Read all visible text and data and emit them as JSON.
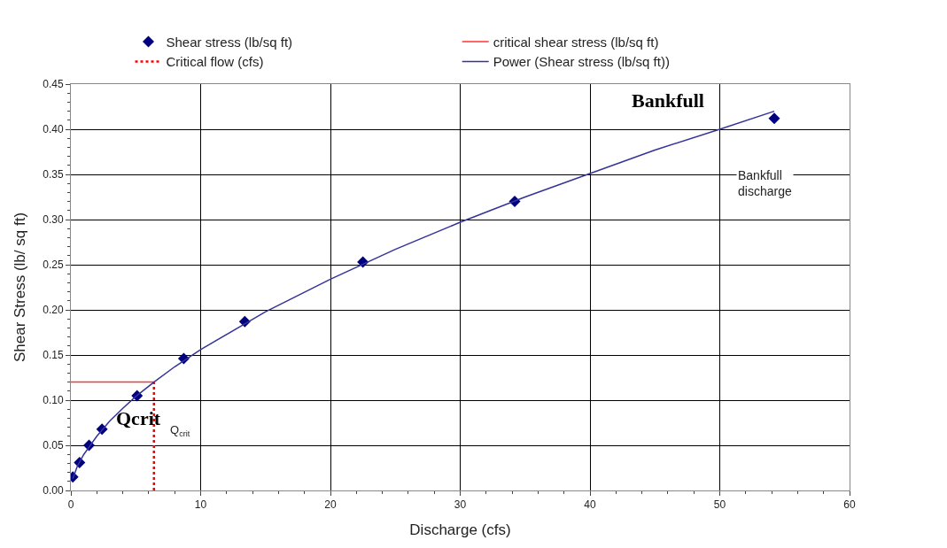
{
  "chart_data": {
    "type": "scatter",
    "xlabel": "Discharge (cfs)",
    "ylabel": "Shear Stress (lb/ sq ft)",
    "xlim": [
      0,
      60
    ],
    "xticks": [
      0,
      10,
      20,
      30,
      40,
      50,
      60
    ],
    "ylim": [
      0,
      0.45
    ],
    "yticks": [
      {
        "value": 0,
        "label": "0.00"
      },
      {
        "value": 0.05,
        "label": "0.05"
      },
      {
        "value": 0.1,
        "label": "0.10"
      },
      {
        "value": 0.15,
        "label": "0.15"
      },
      {
        "value": 0.2,
        "label": "0.20"
      },
      {
        "value": 0.25,
        "label": "0.25"
      },
      {
        "value": 0.3,
        "label": "0.30"
      },
      {
        "value": 0.35,
        "label": "0.35"
      },
      {
        "value": 0.4,
        "label": "0.40"
      },
      {
        "value": 0.45,
        "label": "0.45"
      }
    ],
    "grid": true,
    "legend": "top",
    "series": [
      {
        "name": "Shear stress (lb/sq ft)",
        "marker": "diamond",
        "color": "#000080",
        "x": [
          0.15,
          0.67,
          1.4,
          2.4,
          5.1,
          8.7,
          13.4,
          22.5,
          34.2,
          54.2
        ],
        "values": [
          0.015,
          0.031,
          0.05,
          0.068,
          0.105,
          0.146,
          0.187,
          0.253,
          0.32,
          0.412
        ]
      },
      {
        "name": "critical shear stress (lb/sq ft)",
        "type": "line",
        "marker": "none",
        "line_style": "solid",
        "color": "#ff3333",
        "x": [
          0,
          6.4
        ],
        "values": [
          0.12,
          0.12
        ]
      },
      {
        "name": "Critical flow (cfs)",
        "type": "line",
        "marker": "none",
        "line_style": "dotted",
        "color": "#ff0000",
        "x": [
          6.4,
          6.4
        ],
        "values": [
          0,
          0.12
        ]
      },
      {
        "name": "Power (Shear stress (lb/sq ft))",
        "type": "line",
        "marker": "none",
        "line_style": "solid",
        "color": "#333399",
        "x": [
          0.15,
          0.5,
          1,
          2,
          3,
          4,
          5,
          6.4,
          8,
          10,
          15,
          20,
          25,
          30,
          35,
          40,
          45,
          50,
          54.2
        ],
        "values": [
          0.013,
          0.027,
          0.04,
          0.06,
          0.077,
          0.091,
          0.104,
          0.12,
          0.137,
          0.156,
          0.198,
          0.234,
          0.267,
          0.297,
          0.325,
          0.351,
          0.377,
          0.4,
          0.42
        ]
      }
    ],
    "annotations": [
      "Bankfull",
      "Qcrit",
      "Q$_{crit}$",
      "Bankfull\ndischarge"
    ]
  }
}
